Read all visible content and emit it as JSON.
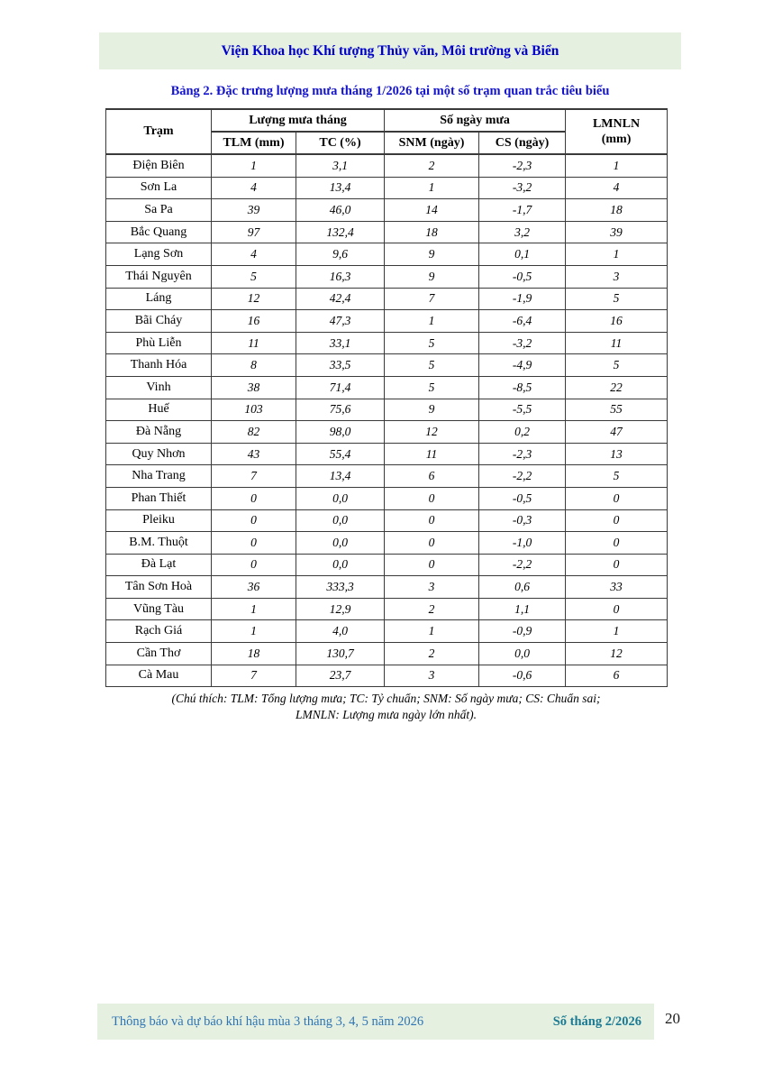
{
  "colors": {
    "banner_bg": "#E5F0E0",
    "banner_text": "#0000CC",
    "title_text": "#1414CC",
    "table_border": "#3a3a3a",
    "footer_bg": "#E5F0E0",
    "footer_left": "#2E74B5",
    "footer_right": "#1B7A93"
  },
  "header": {
    "banner": "Viện Khoa học Khí tượng Thủy văn, Môi trường và Biển"
  },
  "table": {
    "title": "Bảng 2. Đặc trưng lượng mưa tháng 1/2026 tại một số trạm quan trắc tiêu biểu",
    "header": {
      "station": "Trạm",
      "rain_group": "Lượng mưa tháng",
      "days_group": "Số ngày mưa",
      "lmnln_line1": "LMNLN",
      "lmnln_line2": "(mm)",
      "sub_tlm": "TLM (mm)",
      "sub_tc": "TC (%)",
      "sub_snm": "SNM (ngày)",
      "sub_cs": "CS (ngày)"
    },
    "rows": [
      [
        "Điện Biên",
        "1",
        "3,1",
        "2",
        "-2,3",
        "1"
      ],
      [
        "Sơn La",
        "4",
        "13,4",
        "1",
        "-3,2",
        "4"
      ],
      [
        "Sa Pa",
        "39",
        "46,0",
        "14",
        "-1,7",
        "18"
      ],
      [
        "Bắc Quang",
        "97",
        "132,4",
        "18",
        "3,2",
        "39"
      ],
      [
        "Lạng Sơn",
        "4",
        "9,6",
        "9",
        "0,1",
        "1"
      ],
      [
        "Thái Nguyên",
        "5",
        "16,3",
        "9",
        "-0,5",
        "3"
      ],
      [
        "Láng",
        "12",
        "42,4",
        "7",
        "-1,9",
        "5"
      ],
      [
        "Bãi Cháy",
        "16",
        "47,3",
        "1",
        "-6,4",
        "16"
      ],
      [
        "Phù Liễn",
        "11",
        "33,1",
        "5",
        "-3,2",
        "11"
      ],
      [
        "Thanh Hóa",
        "8",
        "33,5",
        "5",
        "-4,9",
        "5"
      ],
      [
        "Vinh",
        "38",
        "71,4",
        "5",
        "-8,5",
        "22"
      ],
      [
        "Huế",
        "103",
        "75,6",
        "9",
        "-5,5",
        "55"
      ],
      [
        "Đà Nẵng",
        "82",
        "98,0",
        "12",
        "0,2",
        "47"
      ],
      [
        "Quy Nhơn",
        "43",
        "55,4",
        "11",
        "-2,3",
        "13"
      ],
      [
        "Nha Trang",
        "7",
        "13,4",
        "6",
        "-2,2",
        "5"
      ],
      [
        "Phan Thiết",
        "0",
        "0,0",
        "0",
        "-0,5",
        "0"
      ],
      [
        "Pleiku",
        "0",
        "0,0",
        "0",
        "-0,3",
        "0"
      ],
      [
        "B.M. Thuột",
        "0",
        "0,0",
        "0",
        "-1,0",
        "0"
      ],
      [
        "Đà Lạt",
        "0",
        "0,0",
        "0",
        "-2,2",
        "0"
      ],
      [
        "Tân Sơn Hoà",
        "36",
        "333,3",
        "3",
        "0,6",
        "33"
      ],
      [
        "Vũng Tàu",
        "1",
        "12,9",
        "2",
        "1,1",
        "0"
      ],
      [
        "Rạch Giá",
        "1",
        "4,0",
        "1",
        "-0,9",
        "1"
      ],
      [
        "Cần Thơ",
        "18",
        "130,7",
        "2",
        "0,0",
        "12"
      ],
      [
        "Cà Mau",
        "7",
        "23,7",
        "3",
        "-0,6",
        "6"
      ]
    ]
  },
  "footnote": {
    "line1": "(Chú thích: TLM: Tổng lượng mưa; TC: Tỷ chuẩn; SNM: Số ngày mưa; CS: Chuẩn sai;",
    "line2": "LMNLN: Lượng mưa ngày lớn nhất)."
  },
  "footer": {
    "left_text": "Thông báo và dự báo khí hậu mùa 3 tháng 3, 4, 5 năm 2026",
    "issue_label": "Số tháng 2/2026",
    "page_number": "20"
  }
}
